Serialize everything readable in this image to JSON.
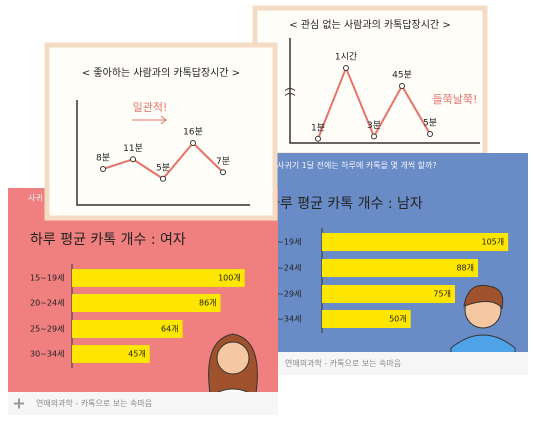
{
  "chart_data": [
    {
      "type": "line",
      "title": "< 관심 없는 사람과의 카톡답장시간 >",
      "values": [
        1,
        60,
        3,
        45,
        5
      ],
      "value_labels": [
        "1분",
        "1시간",
        "3분",
        "45분",
        "5분"
      ],
      "ylim": [
        0,
        65
      ],
      "color": "#e5736a",
      "annotation": "들쭉날쭉!"
    },
    {
      "type": "hbar",
      "header": "사귀기 1달 전에는 하루에 카톡을 몇 개씩 할까?",
      "title": "하루 평균 카톡 개수 : 남자",
      "categories": [
        "15~19세",
        "20~24세",
        "25~29세",
        "30~34세"
      ],
      "values": [
        105,
        88,
        75,
        50
      ],
      "value_labels": [
        "105개",
        "88개",
        "75개",
        "50개"
      ],
      "xlim": [
        0,
        110
      ],
      "color": "#ffe600",
      "background": "#6a8cc6",
      "footer": "연애의과학 - 카톡으로 보는 속마음"
    },
    {
      "type": "hbar",
      "header": "사귀",
      "title": "하루 평균 카톡 개수 : 여자",
      "categories": [
        "15~19세",
        "20~24세",
        "25~29세",
        "30~34세"
      ],
      "values": [
        100,
        86,
        64,
        45
      ],
      "value_labels": [
        "100개",
        "86개",
        "64개",
        "45개"
      ],
      "xlim": [
        0,
        110
      ],
      "color": "#ffe600",
      "background": "#f07f7f",
      "footer": "연애의과학 - 카톡으로 보는 속마음"
    },
    {
      "type": "line",
      "title": "< 좋아하는 사람과의 카톡답장시간 >",
      "values": [
        8,
        11,
        5,
        16,
        7
      ],
      "value_labels": [
        "8분",
        "11분",
        "5분",
        "16분",
        "7분"
      ],
      "ylim": [
        0,
        20
      ],
      "color": "#e5736a",
      "annotation": "일관적!"
    }
  ]
}
